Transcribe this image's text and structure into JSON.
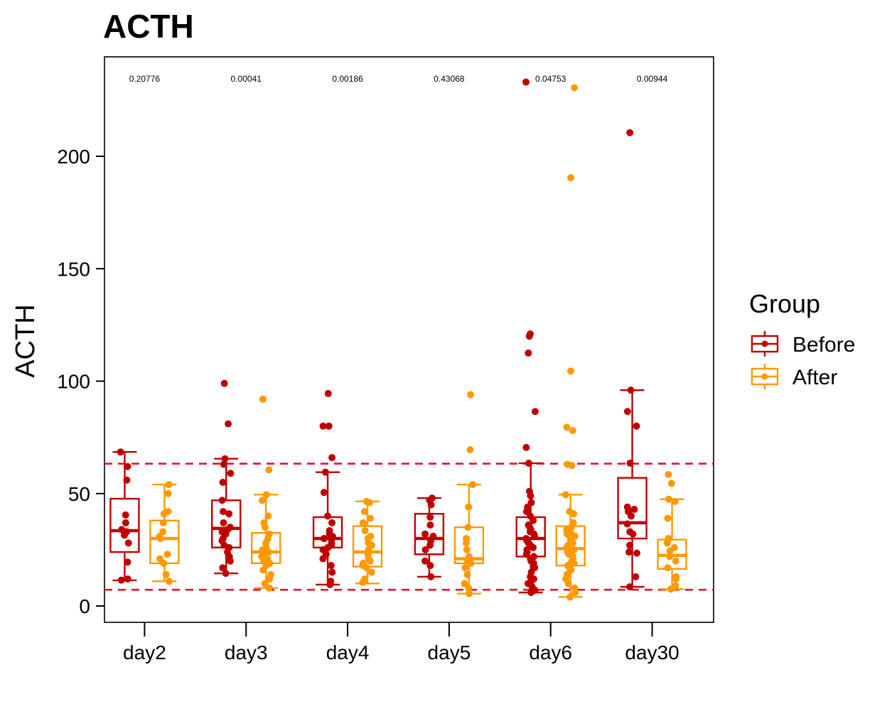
{
  "chart_data": {
    "type": "box",
    "title": "ACTH",
    "xlabel": "",
    "ylabel": "ACTH",
    "ylim": [
      -3.5,
      250
    ],
    "yticks": [
      0,
      50,
      100,
      150,
      200
    ],
    "categories": [
      "day2",
      "day3",
      "day4",
      "day5",
      "day6",
      "day30"
    ],
    "p_values": [
      "0.20776",
      "0.00041",
      "0.00186",
      "0.43068",
      "0.04753",
      "0.00944"
    ],
    "reference_lines": [
      7.2,
      63.3
    ],
    "reference_line_color": "#E8112D",
    "legend": {
      "title": "Group",
      "position": "right",
      "entries": [
        "Before",
        "After"
      ]
    },
    "series": [
      {
        "name": "Before",
        "color": "#C00000",
        "boxes": [
          {
            "min": 11.4,
            "q1": 24.0,
            "median": 33.5,
            "q3": 47.7,
            "max": 68.5
          },
          {
            "min": 14.5,
            "q1": 26.0,
            "median": 34.5,
            "q3": 47.0,
            "max": 65.5
          },
          {
            "min": 9.5,
            "q1": 26.0,
            "median": 30.0,
            "q3": 39.5,
            "max": 59.5
          },
          {
            "min": 13.0,
            "q1": 23.0,
            "median": 30.0,
            "q3": 41.0,
            "max": 48.0
          },
          {
            "min": 6.0,
            "q1": 22.0,
            "median": 30.0,
            "q3": 39.5,
            "max": 63.5
          },
          {
            "min": 8.5,
            "q1": 30.0,
            "median": 37.0,
            "q3": 57.0,
            "max": 96.0
          }
        ],
        "points": [
          [
            68.5,
            62,
            56,
            40.5,
            37,
            34,
            33,
            31.5,
            28,
            19.5,
            12,
            11.5
          ],
          [
            99,
            81,
            65.5,
            63,
            59,
            55,
            47,
            42,
            41,
            37,
            35,
            34,
            33,
            32,
            30,
            29,
            27,
            26,
            24,
            22,
            20,
            17,
            14.5
          ],
          [
            94.5,
            80,
            80,
            66,
            59.5,
            50.5,
            40,
            37,
            33.5,
            32,
            31,
            30,
            29.5,
            28,
            27,
            26,
            25,
            23,
            21,
            18,
            15,
            11,
            9.5
          ],
          [
            48,
            47,
            45,
            39.5,
            36,
            32,
            31,
            29,
            27,
            25,
            20,
            18,
            13
          ],
          [
            233,
            121,
            120,
            112.5,
            86.5,
            70.5,
            63.5,
            51,
            49,
            46,
            44,
            42,
            40,
            38,
            36,
            35,
            34,
            33,
            32,
            31,
            30,
            29,
            28,
            27,
            26,
            25,
            24,
            23,
            22,
            21,
            20,
            19,
            17,
            15,
            13,
            12,
            11,
            10,
            8.5,
            7,
            6
          ],
          [
            210.5,
            96,
            86.5,
            80,
            63.5,
            44,
            43,
            42,
            40,
            36.5,
            33,
            32,
            27,
            24,
            23.5,
            13,
            8.5
          ]
        ]
      },
      {
        "name": "After",
        "color": "#FF9900",
        "boxes": [
          {
            "min": 11.0,
            "q1": 19.0,
            "median": 30.0,
            "q3": 38.0,
            "max": 54.0
          },
          {
            "min": 8.0,
            "q1": 19.0,
            "median": 24.0,
            "q3": 32.5,
            "max": 49.5
          },
          {
            "min": 10.0,
            "q1": 17.5,
            "median": 24.0,
            "q3": 35.5,
            "max": 46.5
          },
          {
            "min": 5.5,
            "q1": 19.0,
            "median": 21.0,
            "q3": 35.0,
            "max": 54.0
          },
          {
            "min": 4.0,
            "q1": 18.0,
            "median": 25.5,
            "q3": 35.5,
            "max": 49.5
          },
          {
            "min": 7.5,
            "q1": 16.5,
            "median": 22.5,
            "q3": 29.5,
            "max": 47.5
          }
        ],
        "points": [
          [
            54,
            50,
            42,
            41,
            37,
            33,
            31,
            30,
            23,
            21,
            19,
            14,
            11
          ],
          [
            92,
            60.5,
            49.5,
            47,
            40,
            37,
            35,
            32,
            30,
            28,
            26,
            25,
            24,
            23,
            22,
            21,
            20,
            19,
            18,
            16,
            14,
            12,
            10,
            8
          ],
          [
            46.5,
            46,
            42,
            39,
            37,
            33.5,
            31,
            30,
            28,
            27,
            25,
            24,
            23,
            21,
            20,
            19,
            18,
            17,
            15,
            12,
            10.5
          ],
          [
            94,
            69.5,
            54,
            44,
            35,
            30,
            28,
            25,
            22,
            20,
            19,
            17,
            14,
            10,
            8,
            5.5
          ],
          [
            230.5,
            190.5,
            104.5,
            79.5,
            78,
            63,
            62.5,
            49.5,
            42,
            41,
            37,
            35,
            34,
            33,
            32,
            31,
            30,
            29,
            28,
            27,
            26,
            25,
            24,
            23,
            22,
            21,
            20,
            19,
            18,
            17,
            16,
            14,
            12,
            10,
            8,
            6,
            4
          ],
          [
            58.5,
            54.5,
            47.5,
            46.5,
            39,
            30,
            28,
            26,
            24.5,
            22,
            20,
            17,
            13,
            12,
            9,
            7.5
          ]
        ]
      }
    ]
  }
}
